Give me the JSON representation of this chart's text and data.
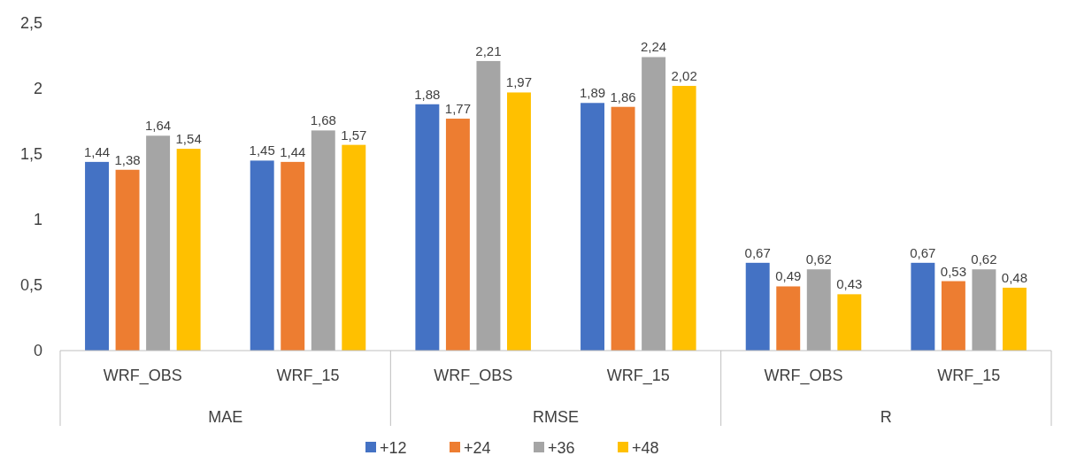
{
  "chart_data": {
    "type": "bar",
    "categories": [
      "WRF_OBS",
      "WRF_15",
      "WRF_OBS",
      "WRF_15",
      "WRF_OBS",
      "WRF_15"
    ],
    "annotations": [
      "MAE",
      "RMSE",
      "R"
    ],
    "series": [
      {
        "name": "+12",
        "color": "#4472c4",
        "values": [
          1.44,
          1.45,
          1.88,
          1.89,
          0.67,
          0.67
        ],
        "value_labels": [
          "1,44",
          "1,45",
          "1,88",
          "1,89",
          "0,67",
          "0,67"
        ]
      },
      {
        "name": "+24",
        "color": "#ed7d31",
        "values": [
          1.38,
          1.44,
          1.77,
          1.86,
          0.49,
          0.53
        ],
        "value_labels": [
          "1,38",
          "1,44",
          "1,77",
          "1,86",
          "0,49",
          "0,53"
        ]
      },
      {
        "name": "+36",
        "color": "#a5a5a5",
        "values": [
          1.64,
          1.68,
          2.21,
          2.24,
          0.62,
          0.62
        ],
        "value_labels": [
          "1,64",
          "1,68",
          "2,21",
          "2,24",
          "0,62",
          "0,62"
        ]
      },
      {
        "name": "+48",
        "color": "#ffc000",
        "values": [
          1.54,
          1.57,
          1.97,
          2.02,
          0.43,
          0.48
        ],
        "value_labels": [
          "1,54",
          "1,57",
          "1,97",
          "2,02",
          "0,43",
          "0,48"
        ]
      }
    ],
    "ylim": [
      0,
      2.5
    ],
    "yticks": [
      0,
      {
        "value": 0.5,
        "label": "0,5"
      },
      1,
      {
        "value": 1.5,
        "label": "1,5"
      },
      2,
      {
        "value": 2.5,
        "label": "2,5"
      }
    ],
    "grid": false,
    "legend": "bottom"
  }
}
